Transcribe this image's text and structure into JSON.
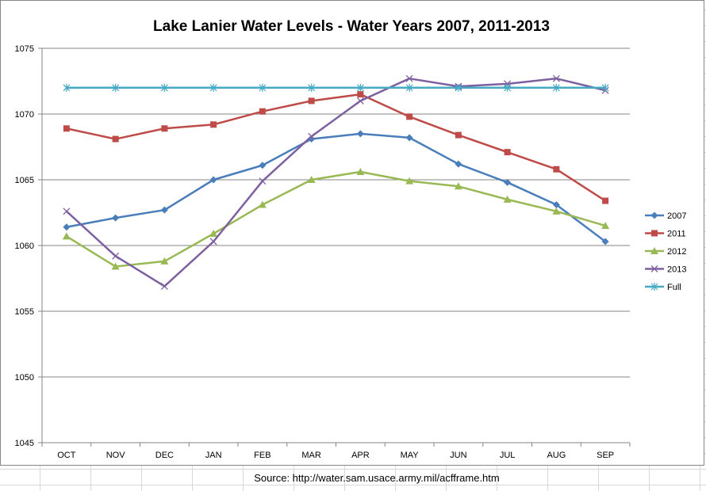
{
  "chart_data": {
    "type": "line",
    "title": "Lake Lanier Water Levels - Water Years 2007, 2011-2013",
    "xlabel": "",
    "ylabel": "",
    "categories": [
      "OCT",
      "NOV",
      "DEC",
      "JAN",
      "FEB",
      "MAR",
      "APR",
      "MAY",
      "JUN",
      "JUL",
      "AUG",
      "SEP"
    ],
    "ylim": [
      1045,
      1075
    ],
    "yticks": [
      1045,
      1050,
      1055,
      1060,
      1065,
      1070,
      1075
    ],
    "grid": true,
    "legend_position": "right",
    "series": [
      {
        "name": "2007",
        "color": "#4a7ebb",
        "marker": "diamond",
        "values": [
          1061.4,
          1062.1,
          1062.7,
          1065.0,
          1066.1,
          1068.1,
          1068.5,
          1068.2,
          1066.2,
          1064.8,
          1063.1,
          1060.3
        ]
      },
      {
        "name": "2011",
        "color": "#be4b48",
        "marker": "square",
        "values": [
          1068.9,
          1068.1,
          1068.9,
          1069.2,
          1070.2,
          1071.0,
          1071.5,
          1069.8,
          1068.4,
          1067.1,
          1065.8,
          1063.4
        ]
      },
      {
        "name": "2012",
        "color": "#98b954",
        "marker": "triangle",
        "values": [
          1060.7,
          1058.4,
          1058.8,
          1060.9,
          1063.1,
          1065.0,
          1065.6,
          1064.9,
          1064.5,
          1063.5,
          1062.6,
          1061.5
        ]
      },
      {
        "name": "2013",
        "color": "#7d60a0",
        "marker": "x",
        "values": [
          1062.6,
          1059.2,
          1056.9,
          1060.3,
          1064.9,
          1068.3,
          1071.0,
          1072.7,
          1072.1,
          1072.3,
          1072.7,
          1071.8
        ]
      },
      {
        "name": "Full",
        "color": "#46aac5",
        "marker": "star",
        "values": [
          1072,
          1072,
          1072,
          1072,
          1072,
          1072,
          1072,
          1072,
          1072,
          1072,
          1072,
          1072
        ]
      }
    ]
  },
  "footer": {
    "source": "Source: http://water.sam.usace.army.mil/acfframe.htm"
  }
}
